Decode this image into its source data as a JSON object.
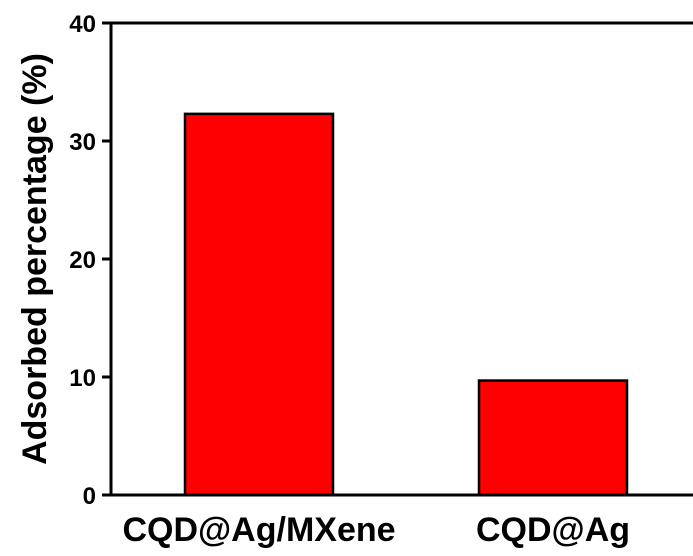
{
  "chart_data": {
    "type": "bar",
    "categories": [
      "CQD@Ag/MXene",
      "CQD@Ag"
    ],
    "values": [
      32.3,
      9.7
    ],
    "title": "",
    "xlabel": "",
    "ylabel": "Adsorbed percentage (%)",
    "ylim": [
      0,
      40
    ],
    "yticks": [
      0,
      10,
      20,
      30,
      40
    ],
    "ytick_labels": [
      "0",
      "10",
      "20",
      "30",
      "40"
    ],
    "bar_color": "#ff0000",
    "bar_edge_color": "#000000",
    "grid": false,
    "legend": "none"
  }
}
